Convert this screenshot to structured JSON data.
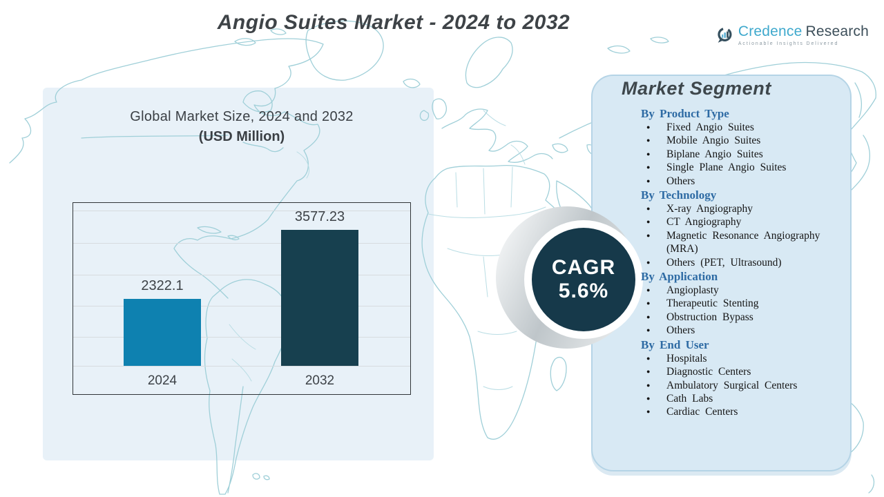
{
  "header": {
    "title": "Angio Suites Market - 2024 to 2032"
  },
  "logo": {
    "brand_primary": "Credence",
    "brand_secondary": "Research",
    "tagline": "Actionable Insights Delivered",
    "icon": "bar-chart-speech-bubble-icon",
    "brand_color": "#3fa9cd",
    "dark_color": "#3d4f5a"
  },
  "chart": {
    "heading_line1": "Global Market Size, 2024 and 2032",
    "heading_line2": "(USD Million)"
  },
  "chart_data": {
    "type": "bar",
    "title": "Global Market Size, 2024 and 2032 (USD Million)",
    "categories": [
      "2024",
      "2032"
    ],
    "values": [
      2322.1,
      3577.23
    ],
    "value_labels": [
      "2322.1",
      "3577.23"
    ],
    "bar_colors": [
      "#0e81b0",
      "#17404f"
    ],
    "xlabel": "",
    "ylabel": "USD Million",
    "ylim": [
      1105,
      4067
    ],
    "grid": true,
    "legend": false
  },
  "cagr": {
    "label": "CAGR",
    "value": "5.6%",
    "circle_color": "#16394a"
  },
  "segments": {
    "title": "Market Segment",
    "heading_color": "#2e6ba4",
    "panel_color": "#d8e9f4",
    "groups": [
      {
        "heading": "By Product Type",
        "items": [
          "Fixed Angio Suites",
          "Mobile Angio Suites",
          "Biplane Angio Suites",
          "Single Plane Angio Suites",
          "Others"
        ]
      },
      {
        "heading": "By Technology",
        "items": [
          "X-ray Angiography",
          "CT Angiography",
          "Magnetic Resonance Angiography (MRA)",
          "Others (PET, Ultrasound)"
        ]
      },
      {
        "heading": "By Application",
        "items": [
          "Angioplasty",
          "Therapeutic Stenting",
          "Obstruction Bypass",
          "Others"
        ]
      },
      {
        "heading": "By End User",
        "items": [
          "Hospitals",
          "Diagnostic Centers",
          "Ambulatory Surgical Centers",
          "Cath Labs",
          "Cardiac Centers"
        ]
      }
    ]
  }
}
